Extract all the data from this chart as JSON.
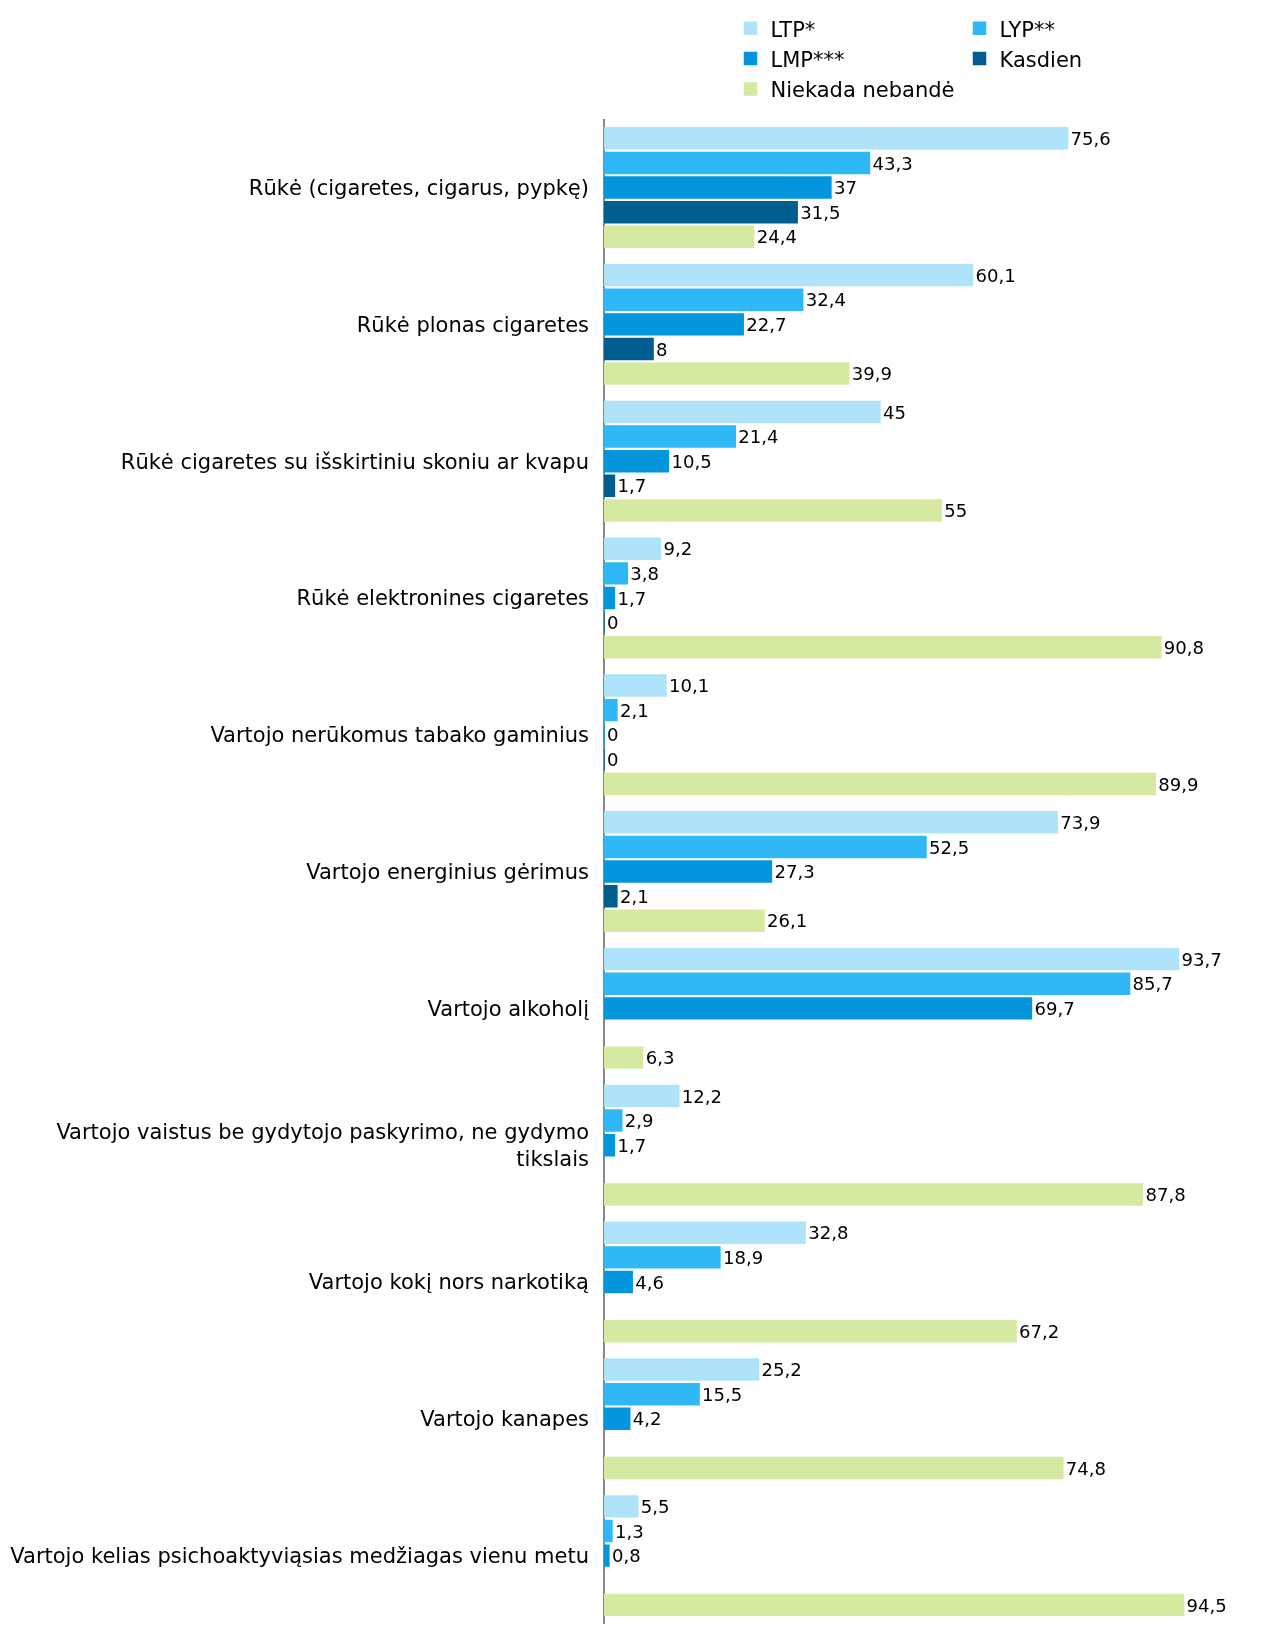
{
  "chart_data": {
    "type": "bar",
    "orientation": "horizontal",
    "legend": "top",
    "tick_labels": "y",
    "grid": false,
    "categories": [
      "Rūkė (cigaretes, cigarus, pypkę)",
      "Rūkė plonas cigaretes",
      "Rūkė cigaretes su išskirtiniu skoniu ar kvapu",
      "Rūkė elektronines cigaretes",
      "Vartojo nerūkomus tabako gaminius",
      "Vartojo energinius gėrimus",
      "Vartojo alkoholį",
      "Vartojo vaistus be gydytojo paskyrimo, ne gydymo tikslais",
      "Vartojo kokį nors narkotiką",
      "Vartojo kanapes",
      "Vartojo kelias psichoaktyviąsias medžiagas vienu metu"
    ],
    "series": [
      {
        "name": "LTP*",
        "color": "#aee3fa",
        "values": [
          75.6,
          60.1,
          45,
          9.2,
          10.1,
          73.9,
          93.7,
          12.2,
          32.8,
          25.2,
          5.5
        ],
        "value_labels": [
          "75,6",
          "60,1",
          "45",
          "9,2",
          "10,1",
          "73,9",
          "93,7",
          "12,2",
          "32,8",
          "25,2",
          "5,5"
        ]
      },
      {
        "name": "LYP**",
        "color": "#2fb8f5",
        "values": [
          43.3,
          32.4,
          21.4,
          3.8,
          2.1,
          52.5,
          85.7,
          2.9,
          18.9,
          15.5,
          1.3
        ],
        "value_labels": [
          "43,3",
          "32,4",
          "21,4",
          "3,8",
          "2,1",
          "52,5",
          "85,7",
          "2,9",
          "18,9",
          "15,5",
          "1,3"
        ]
      },
      {
        "name": "LMP***",
        "color": "#0595dc",
        "values": [
          37,
          22.7,
          10.5,
          1.7,
          0,
          27.3,
          69.7,
          1.7,
          4.6,
          4.2,
          0.8
        ],
        "value_labels": [
          "37",
          "22,7",
          "10,5",
          "1,7",
          "0",
          "27,3",
          "69,7",
          "1,7",
          "4,6",
          "4,2",
          "0,8"
        ]
      },
      {
        "name": "Kasdien",
        "color": "#005e8e",
        "values": [
          31.5,
          8,
          1.7,
          0,
          0,
          2.1,
          null,
          null,
          null,
          null,
          null
        ],
        "value_labels": [
          "31,5",
          "8",
          "1,7",
          "0",
          "0",
          "2,1",
          null,
          null,
          null,
          null,
          null
        ]
      },
      {
        "name": "Niekada nebandė",
        "color": "#d6e9a0",
        "values": [
          24.4,
          39.9,
          55,
          90.8,
          89.9,
          26.1,
          6.3,
          87.8,
          67.2,
          74.8,
          94.5
        ],
        "value_labels": [
          "24,4",
          "39,9",
          "55",
          "90,8",
          "89,9",
          "26,1",
          "6,3",
          "87,8",
          "67,2",
          "74,8",
          "94,5"
        ]
      }
    ]
  }
}
